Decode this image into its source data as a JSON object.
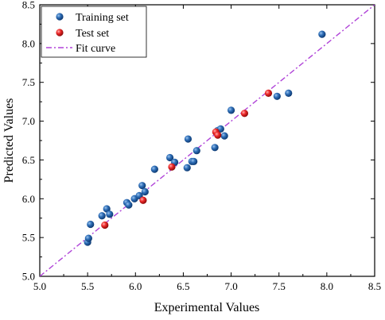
{
  "chart_data": {
    "type": "scatter",
    "xlabel": "Experimental Values",
    "ylabel": "Predicted Values",
    "xlim": [
      5.0,
      8.5
    ],
    "ylim": [
      5.0,
      8.5
    ],
    "xticks": [
      "5.0",
      "5.5",
      "6.0",
      "6.5",
      "7.0",
      "7.5",
      "8.0",
      "8.5"
    ],
    "yticks": [
      "5.0",
      "5.5",
      "6.0",
      "6.5",
      "7.0",
      "7.5",
      "8.0",
      "8.5"
    ],
    "grid": false,
    "legend_position": "top-left",
    "series": [
      {
        "name": "Training set",
        "kind": "points",
        "color": "#1f5fa8",
        "points": [
          [
            5.5,
            5.44
          ],
          [
            5.51,
            5.49
          ],
          [
            5.53,
            5.67
          ],
          [
            5.65,
            5.78
          ],
          [
            5.7,
            5.87
          ],
          [
            5.73,
            5.8
          ],
          [
            5.91,
            5.95
          ],
          [
            5.93,
            5.92
          ],
          [
            5.99,
            6.0
          ],
          [
            6.04,
            6.04
          ],
          [
            6.07,
            6.17
          ],
          [
            6.1,
            6.09
          ],
          [
            6.2,
            6.38
          ],
          [
            6.36,
            6.53
          ],
          [
            6.41,
            6.47
          ],
          [
            6.54,
            6.4
          ],
          [
            6.55,
            6.77
          ],
          [
            6.59,
            6.48
          ],
          [
            6.61,
            6.48
          ],
          [
            6.64,
            6.62
          ],
          [
            6.83,
            6.66
          ],
          [
            6.86,
            6.88
          ],
          [
            6.89,
            6.9
          ],
          [
            6.93,
            6.81
          ],
          [
            7.0,
            7.14
          ],
          [
            7.48,
            7.32
          ],
          [
            7.6,
            7.36
          ],
          [
            7.95,
            8.12
          ]
        ]
      },
      {
        "name": "Test set",
        "kind": "points",
        "color": "#e02020",
        "points": [
          [
            5.68,
            5.66
          ],
          [
            6.08,
            5.98
          ],
          [
            6.38,
            6.41
          ],
          [
            6.84,
            6.86
          ],
          [
            6.86,
            6.82
          ],
          [
            7.14,
            7.1
          ],
          [
            7.39,
            7.36
          ]
        ]
      },
      {
        "name": "Fit curve",
        "kind": "line",
        "color": "#b044d8",
        "style": "dash-dot",
        "points": [
          [
            5.0,
            5.0
          ],
          [
            8.5,
            8.5
          ]
        ]
      }
    ]
  }
}
